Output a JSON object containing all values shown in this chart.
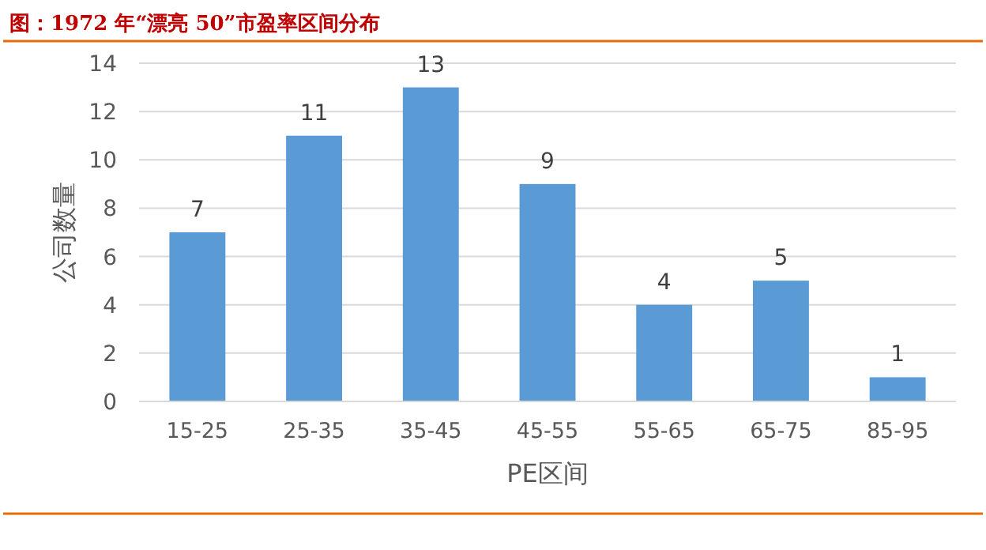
{
  "chart_data": {
    "type": "bar",
    "title": "图：1972 年“漂亮 50”市盈率区间分布",
    "xlabel": "PE区间",
    "ylabel": "公司数量",
    "categories": [
      "15-25",
      "25-35",
      "35-45",
      "45-55",
      "55-65",
      "65-75",
      "85-95"
    ],
    "values": [
      7,
      11,
      13,
      9,
      4,
      5,
      1
    ],
    "color": "#5b9bd5",
    "ylim": [
      0,
      14
    ],
    "yticks": [
      0,
      2,
      4,
      6,
      8,
      10,
      12,
      14
    ],
    "grid": "y",
    "data_labels": true
  }
}
